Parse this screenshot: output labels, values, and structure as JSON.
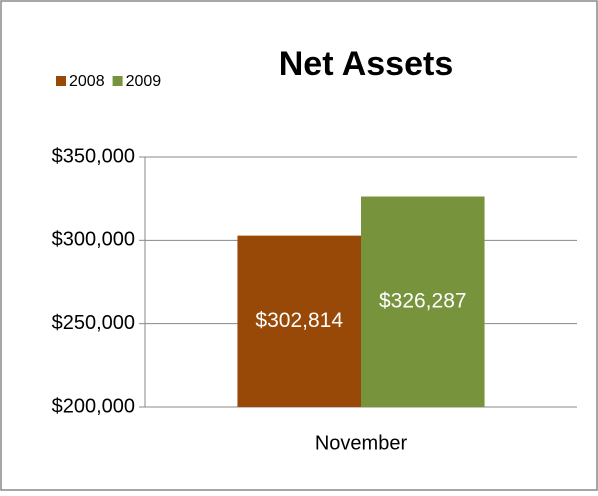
{
  "chart_data": {
    "type": "bar",
    "title": "Net Assets",
    "categories": [
      "November"
    ],
    "series": [
      {
        "name": "2008",
        "color": "#984807",
        "values": [
          302814
        ],
        "value_labels": [
          "$302,814"
        ]
      },
      {
        "name": "2009",
        "color": "#77933c",
        "values": [
          326287
        ],
        "value_labels": [
          "$326,287"
        ]
      }
    ],
    "ylim": [
      200000,
      350000
    ],
    "yticks": [
      {
        "value": 200000,
        "label": "$200,000"
      },
      {
        "value": 250000,
        "label": "$250,000"
      },
      {
        "value": 300000,
        "label": "$300,000"
      },
      {
        "value": 350000,
        "label": "$350,000"
      }
    ],
    "grid": true,
    "legend": "top-left"
  }
}
